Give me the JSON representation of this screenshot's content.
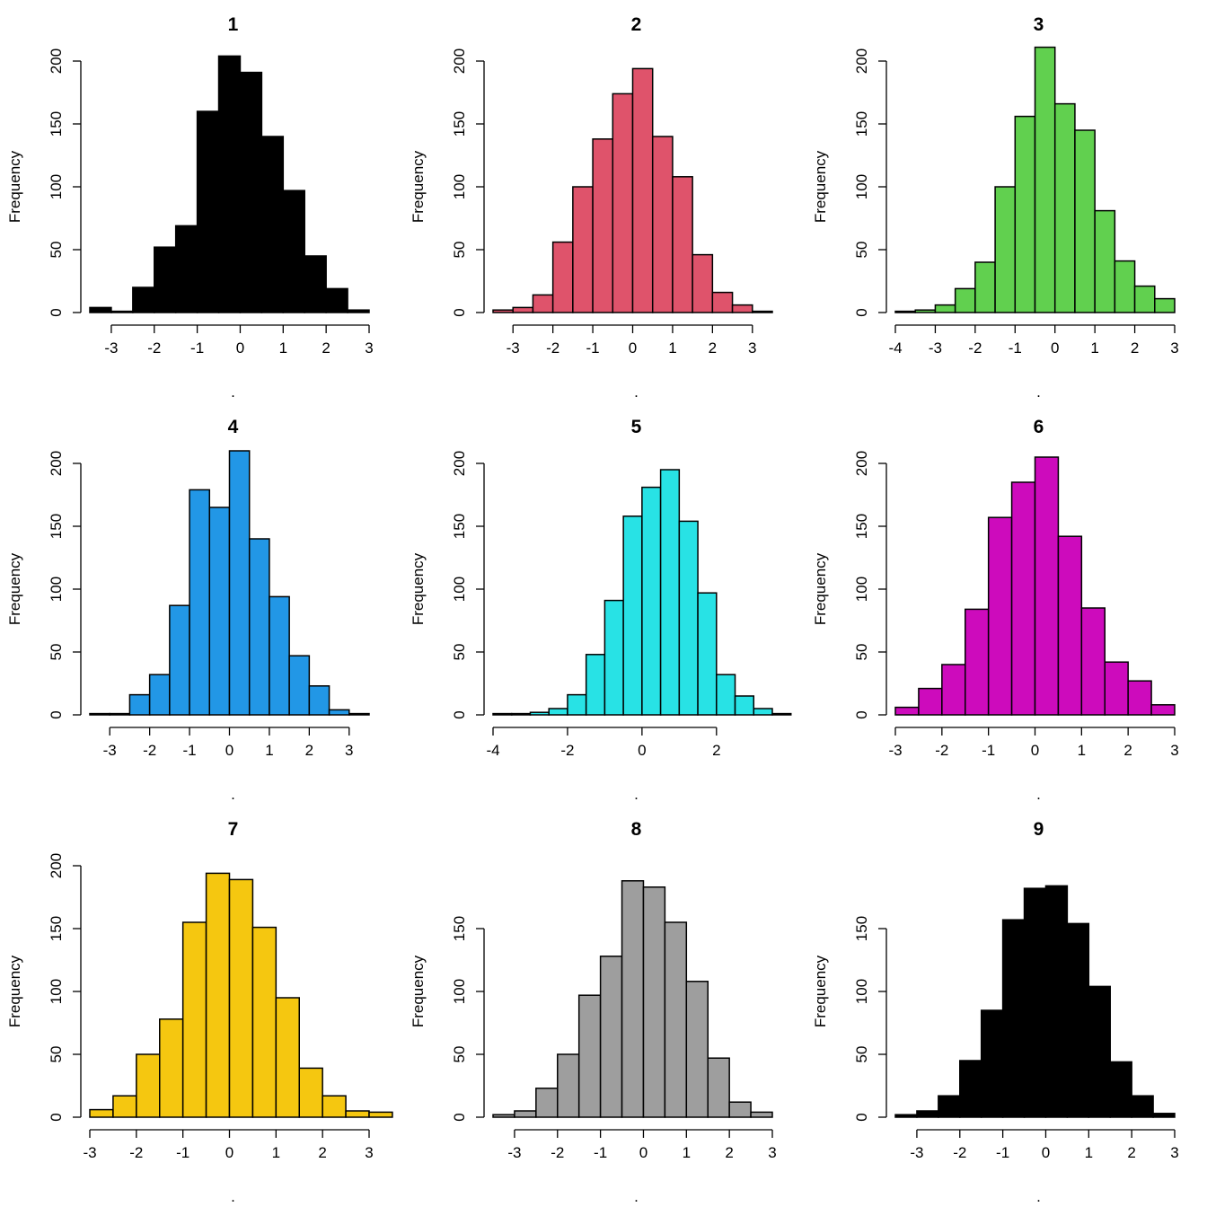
{
  "y_axis_label": "Frequency",
  "x_axis_label": ".",
  "chart_data": [
    {
      "type": "bar",
      "title": "1",
      "color": "#000000",
      "edge": "#000000",
      "bin_start": -3.5,
      "bin_width": 0.5,
      "values": [
        4,
        1,
        20,
        52,
        69,
        160,
        204,
        191,
        140,
        97,
        45,
        19,
        2
      ],
      "x_ticks": [
        -3,
        -2,
        -1,
        0,
        1,
        2,
        3
      ],
      "y_ticks": [
        0,
        50,
        100,
        150,
        200
      ],
      "xlim": [
        -3.5,
        3.0
      ],
      "ylim": [
        0,
        200
      ]
    },
    {
      "type": "bar",
      "title": "2",
      "color": "#DF536B",
      "edge": "#000000",
      "bin_start": -3.5,
      "bin_width": 0.5,
      "values": [
        2,
        4,
        14,
        56,
        100,
        138,
        174,
        194,
        140,
        108,
        46,
        16,
        6,
        1
      ],
      "x_ticks": [
        -3,
        -2,
        -1,
        0,
        1,
        2,
        3
      ],
      "y_ticks": [
        0,
        50,
        100,
        150,
        200
      ],
      "xlim": [
        -3.5,
        3.5
      ],
      "ylim": [
        0,
        200
      ]
    },
    {
      "type": "bar",
      "title": "3",
      "color": "#61D04F",
      "edge": "#000000",
      "bin_start": -4.0,
      "bin_width": 0.5,
      "values": [
        1,
        2,
        6,
        19,
        40,
        100,
        156,
        211,
        166,
        145,
        81,
        41,
        21,
        11
      ],
      "x_ticks": [
        -4,
        -3,
        -2,
        -1,
        0,
        1,
        2,
        3
      ],
      "y_ticks": [
        0,
        50,
        100,
        150,
        200
      ],
      "xlim": [
        -4.0,
        3.0
      ],
      "ylim": [
        0,
        200
      ]
    },
    {
      "type": "bar",
      "title": "4",
      "color": "#2297E6",
      "edge": "#000000",
      "bin_start": -3.5,
      "bin_width": 0.5,
      "values": [
        1,
        1,
        16,
        32,
        87,
        179,
        165,
        210,
        140,
        94,
        47,
        23,
        4,
        1
      ],
      "x_ticks": [
        -3,
        -2,
        -1,
        0,
        1,
        2,
        3
      ],
      "y_ticks": [
        0,
        50,
        100,
        150,
        200
      ],
      "xlim": [
        -3.5,
        3.5
      ],
      "ylim": [
        0,
        200
      ]
    },
    {
      "type": "bar",
      "title": "5",
      "color": "#28E2E5",
      "edge": "#000000",
      "bin_start": -4.0,
      "bin_width": 0.5,
      "values": [
        1,
        1,
        2,
        5,
        16,
        48,
        91,
        158,
        181,
        195,
        154,
        97,
        32,
        15,
        5,
        1
      ],
      "x_ticks": [
        -4,
        -2,
        0,
        2
      ],
      "y_ticks": [
        0,
        50,
        100,
        150,
        200
      ],
      "xlim": [
        -4.0,
        3.5
      ],
      "ylim": [
        0,
        200
      ]
    },
    {
      "type": "bar",
      "title": "6",
      "color": "#CD0BBC",
      "edge": "#000000",
      "bin_start": -3.0,
      "bin_width": 0.5,
      "values": [
        6,
        21,
        40,
        84,
        157,
        185,
        205,
        142,
        85,
        42,
        27,
        8
      ],
      "x_ticks": [
        -3,
        -2,
        -1,
        0,
        1,
        2,
        3
      ],
      "y_ticks": [
        0,
        50,
        100,
        150,
        200
      ],
      "xlim": [
        -3.0,
        3.0
      ],
      "ylim": [
        0,
        200
      ]
    },
    {
      "type": "bar",
      "title": "7",
      "color": "#F5C710",
      "edge": "#000000",
      "bin_start": -3.0,
      "bin_width": 0.5,
      "values": [
        6,
        17,
        50,
        78,
        155,
        194,
        189,
        151,
        95,
        39,
        17,
        5,
        4
      ],
      "x_ticks": [
        -3,
        -2,
        -1,
        0,
        1,
        2,
        3
      ],
      "y_ticks": [
        0,
        50,
        100,
        150,
        200
      ],
      "xlim": [
        -3.0,
        3.0
      ],
      "ylim": [
        0,
        200
      ]
    },
    {
      "type": "bar",
      "title": "8",
      "color": "#9E9E9E",
      "edge": "#000000",
      "bin_start": -3.5,
      "bin_width": 0.5,
      "values": [
        2,
        5,
        23,
        50,
        97,
        128,
        188,
        183,
        155,
        108,
        47,
        12,
        4
      ],
      "x_ticks": [
        -3,
        -2,
        -1,
        0,
        1,
        2,
        3
      ],
      "y_ticks": [
        0,
        50,
        100,
        150
      ],
      "xlim": [
        -3.5,
        3.0
      ],
      "ylim": [
        0,
        190
      ]
    },
    {
      "type": "bar",
      "title": "9",
      "color": "#000000",
      "edge": "#000000",
      "bin_start": -3.5,
      "bin_width": 0.5,
      "values": [
        2,
        5,
        17,
        45,
        85,
        157,
        182,
        184,
        154,
        104,
        44,
        17,
        3
      ],
      "x_ticks": [
        -3,
        -2,
        -1,
        0,
        1,
        2,
        3
      ],
      "y_ticks": [
        0,
        50,
        100,
        150
      ],
      "xlim": [
        -3.5,
        3.0
      ],
      "ylim": [
        0,
        186
      ]
    }
  ]
}
